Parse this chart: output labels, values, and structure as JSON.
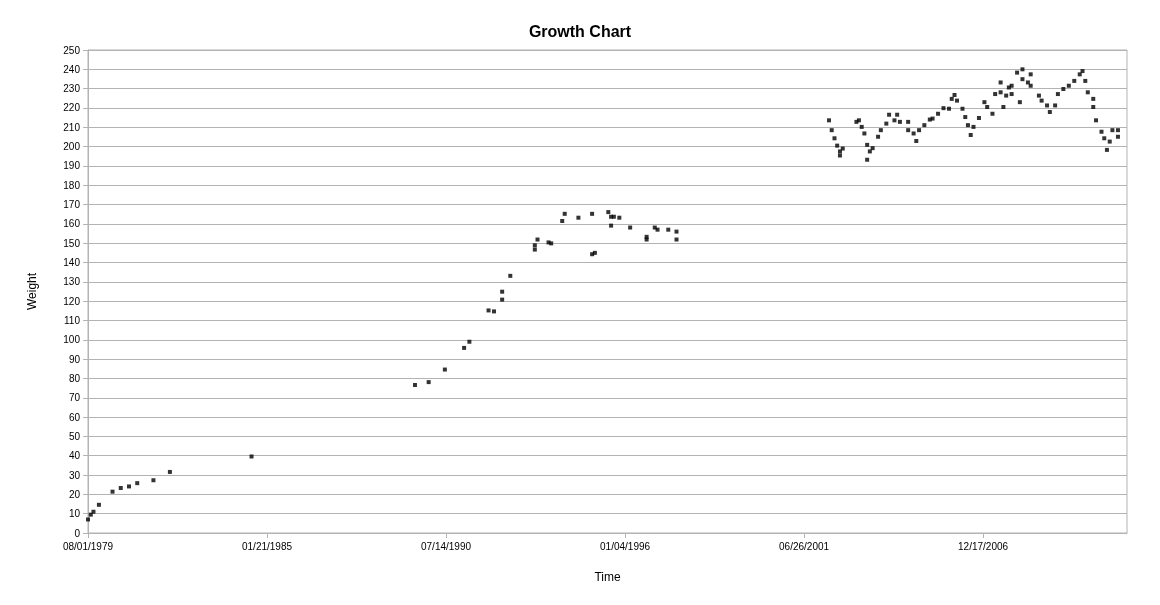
{
  "chart_data": {
    "type": "scatter",
    "title": "Growth Chart",
    "xlabel": "Time",
    "ylabel": "Weight",
    "marker": "square",
    "grid": "y",
    "xlim": [
      "1979-08-01",
      "2011-05-13"
    ],
    "xticks": [
      {
        "value": "1979-08-01",
        "label": "08/01/1979"
      },
      {
        "value": "1985-01-21",
        "label": "01/21/1985"
      },
      {
        "value": "1990-07-14",
        "label": "07/14/1990"
      },
      {
        "value": "1996-01-04",
        "label": "01/04/1996"
      },
      {
        "value": "2001-06-26",
        "label": "06/26/2001"
      },
      {
        "value": "2006-12-17",
        "label": "12/17/2006"
      }
    ],
    "ylim": [
      0,
      250
    ],
    "yticks": [
      0,
      10,
      20,
      30,
      40,
      50,
      60,
      70,
      80,
      90,
      100,
      110,
      120,
      130,
      140,
      150,
      160,
      170,
      180,
      190,
      200,
      210,
      220,
      230,
      240,
      250
    ],
    "series": [
      {
        "color": "#000000",
        "x": [
          "1979-08",
          "1979-09",
          "1979-10",
          "1979-12",
          "1980-05",
          "1980-08",
          "1980-11",
          "1981-02",
          "1981-08",
          "1982-02",
          "1984-08",
          "1989-08",
          "1990-01",
          "1990-07",
          "1991-02",
          "1991-04",
          "1991-11",
          "1992-01",
          "1992-04",
          "1992-04",
          "1992-07",
          "1993-04",
          "1993-04",
          "1993-05",
          "1993-09",
          "1993-10",
          "1994-02",
          "1994-03",
          "1994-08",
          "1995-01",
          "1995-01",
          "1995-02",
          "1995-07",
          "1995-08",
          "1995-09",
          "1995-08",
          "1995-11",
          "1996-03",
          "1996-09",
          "1996-09",
          "1996-12",
          "1997-01",
          "1997-05",
          "1997-08",
          "1997-08",
          "2002-04",
          "2002-05",
          "2002-06",
          "2002-07",
          "2002-08",
          "2002-08",
          "2002-09",
          "2003-02",
          "2003-03",
          "2003-04",
          "2003-05",
          "2003-06",
          "2003-06",
          "2003-07",
          "2003-08",
          "2003-10",
          "2003-11",
          "2004-01",
          "2004-02",
          "2004-04",
          "2004-05",
          "2004-06",
          "2004-09",
          "2004-09",
          "2004-11",
          "2004-12",
          "2005-01",
          "2005-03",
          "2005-05",
          "2005-06",
          "2005-08",
          "2005-10",
          "2005-12",
          "2006-01",
          "2006-02",
          "2006-03",
          "2006-05",
          "2006-06",
          "2006-07",
          "2006-08",
          "2006-09",
          "2006-11",
          "2007-01",
          "2007-02",
          "2007-04",
          "2007-05",
          "2007-07",
          "2007-07",
          "2007-08",
          "2007-09",
          "2007-10",
          "2007-11",
          "2007-11",
          "2008-01",
          "2008-02",
          "2008-03",
          "2008-03",
          "2008-05",
          "2008-06",
          "2008-06",
          "2008-09",
          "2008-10",
          "2008-12",
          "2009-01",
          "2009-03",
          "2009-04",
          "2009-06",
          "2009-08",
          "2009-10",
          "2009-12",
          "2010-01",
          "2010-02",
          "2010-03",
          "2010-05",
          "2010-05",
          "2010-06",
          "2010-08",
          "2010-09",
          "2010-10",
          "2010-11",
          "2010-12",
          "2011-02",
          "2011-02"
        ],
        "values": [
          7,
          9.5,
          11,
          14.6,
          21.4,
          23.3,
          24.1,
          25.8,
          27.3,
          31.6,
          39.6,
          76.6,
          78.1,
          84.6,
          95.8,
          99,
          115.2,
          114.7,
          120.8,
          124.9,
          133.1,
          146.7,
          148.9,
          151.9,
          150.4,
          149.9,
          161.5,
          165.2,
          163.2,
          165.2,
          144.3,
          145,
          166.1,
          163.7,
          163.7,
          159.1,
          163.2,
          158.1,
          153.3,
          151.9,
          158.1,
          157,
          157,
          156,
          151.9,
          213.6,
          208.5,
          204.3,
          200.5,
          197.5,
          195.4,
          199,
          212.8,
          213.6,
          210.2,
          206.8,
          200.9,
          193.2,
          197.5,
          199.2,
          205.1,
          208.5,
          211.9,
          216.5,
          213.6,
          216.5,
          212.8,
          212.8,
          208.5,
          206.8,
          202.9,
          208.5,
          211.1,
          214,
          214.5,
          217,
          219.9,
          219.6,
          224.7,
          226.7,
          223.8,
          219.6,
          215.3,
          211.1,
          206,
          210.2,
          214.8,
          223,
          220.5,
          217,
          227.2,
          233.2,
          228.1,
          220.5,
          226.4,
          230.6,
          231.5,
          227.2,
          238.3,
          223,
          240,
          234.9,
          233.2,
          237.4,
          231.5,
          226.4,
          223.8,
          221.3,
          217.9,
          221.3,
          227.2,
          229.8,
          231.5,
          234,
          237.4,
          239.1,
          234,
          228.1,
          224.7,
          220.5,
          213.6,
          207.7,
          204.3,
          198.3,
          202.6,
          208.5,
          205.1,
          208.5
        ]
      }
    ]
  }
}
